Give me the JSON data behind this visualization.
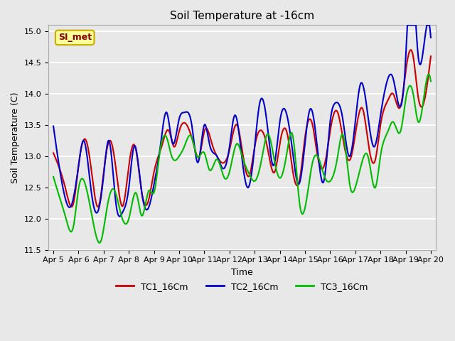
{
  "title": "Soil Temperature at -16cm",
  "xlabel": "Time",
  "ylabel": "Soil Temperature (C)",
  "ylim": [
    11.5,
    15.1
  ],
  "yticks": [
    11.5,
    12.0,
    12.5,
    13.0,
    13.5,
    14.0,
    14.5,
    15.0
  ],
  "bg_color": "#e8e8e8",
  "grid_color": "#ffffff",
  "line_colors": [
    "#cc0000",
    "#0000cc",
    "#00bb00"
  ],
  "legend_labels": [
    "TC1_16Cm",
    "TC2_16Cm",
    "TC3_16Cm"
  ],
  "watermark_text": "SI_met",
  "watermark_bg": "#ffff99",
  "watermark_border": "#ccaa00",
  "watermark_text_color": "#880000",
  "x_tick_labels": [
    "Apr 5",
    "Apr 6",
    "Apr 7",
    "Apr 8",
    "Apr 9",
    "Apr 10",
    "Apr 11",
    "Apr 12",
    "Apr 13",
    "Apr 14",
    "Apr 15",
    "Apr 16",
    "Apr 17",
    "Apr 18",
    "Apr 19",
    "Apr 20"
  ],
  "tc1_x": [
    0,
    0.2,
    0.5,
    0.8,
    1.0,
    1.3,
    1.5,
    1.8,
    2.0,
    2.25,
    2.5,
    2.75,
    3.0,
    3.25,
    3.5,
    3.75,
    4.0,
    4.3,
    4.6,
    4.8,
    5.0,
    5.3,
    5.6,
    5.8,
    6.0,
    6.3,
    6.5,
    6.8,
    7.0,
    7.3,
    7.5,
    7.8,
    8.0,
    8.3,
    8.5,
    8.8,
    9.0,
    9.3,
    9.5,
    9.8,
    10.0,
    10.3,
    10.5,
    10.8,
    11.0,
    11.3,
    11.5,
    11.8,
    12.0,
    12.3,
    12.5,
    12.8,
    13.0,
    13.3,
    13.5,
    13.8,
    14.0,
    14.3,
    14.5,
    14.8,
    15.0
  ],
  "tc1_y": [
    13.05,
    12.85,
    12.45,
    12.25,
    12.85,
    13.25,
    12.8,
    12.2,
    12.75,
    13.25,
    12.75,
    12.2,
    12.85,
    13.15,
    12.45,
    12.25,
    12.75,
    13.15,
    13.4,
    13.15,
    13.4,
    13.5,
    13.15,
    13.0,
    13.4,
    13.2,
    13.0,
    12.9,
    13.1,
    13.5,
    13.1,
    12.7,
    13.15,
    13.4,
    13.15,
    12.75,
    13.2,
    13.35,
    12.8,
    12.65,
    13.3,
    13.5,
    13.0,
    12.9,
    13.4,
    13.7,
    13.3,
    12.95,
    13.35,
    13.75,
    13.25,
    12.95,
    13.5,
    13.9,
    14.0,
    13.8,
    14.35,
    14.6,
    13.95,
    14.0,
    14.6
  ],
  "tc2_x": [
    0,
    0.15,
    0.4,
    0.7,
    1.0,
    1.2,
    1.5,
    1.75,
    2.0,
    2.2,
    2.5,
    2.75,
    3.0,
    3.2,
    3.5,
    3.75,
    4.0,
    4.25,
    4.5,
    4.75,
    5.0,
    5.2,
    5.5,
    5.75,
    6.0,
    6.2,
    6.5,
    6.75,
    7.0,
    7.2,
    7.5,
    7.75,
    8.0,
    8.2,
    8.5,
    8.75,
    9.0,
    9.2,
    9.5,
    9.75,
    10.0,
    10.2,
    10.5,
    10.75,
    11.0,
    11.2,
    11.5,
    11.75,
    12.0,
    12.2,
    12.5,
    12.75,
    13.0,
    13.2,
    13.5,
    13.75,
    14.0,
    14.2,
    14.5,
    14.75,
    15.0
  ],
  "tc2_y": [
    13.48,
    13.05,
    12.45,
    12.2,
    12.85,
    13.25,
    12.45,
    12.1,
    12.7,
    13.25,
    12.2,
    12.1,
    12.5,
    13.15,
    12.45,
    12.15,
    12.55,
    13.15,
    13.7,
    13.2,
    13.6,
    13.7,
    13.5,
    12.9,
    13.5,
    13.2,
    13.0,
    12.8,
    13.15,
    13.65,
    12.95,
    12.5,
    13.15,
    13.85,
    13.5,
    12.85,
    13.55,
    13.75,
    13.1,
    12.55,
    13.2,
    13.75,
    13.1,
    12.6,
    13.55,
    13.85,
    13.6,
    13.0,
    13.55,
    14.15,
    13.65,
    13.15,
    13.65,
    14.1,
    14.25,
    13.8,
    14.55,
    16.0,
    14.6,
    14.85,
    14.9
  ],
  "tc3_x": [
    0,
    0.2,
    0.5,
    0.8,
    1.0,
    1.3,
    1.6,
    1.9,
    2.1,
    2.4,
    2.7,
    3.0,
    3.3,
    3.5,
    3.8,
    4.0,
    4.2,
    4.5,
    4.7,
    5.0,
    5.2,
    5.5,
    5.7,
    6.0,
    6.2,
    6.5,
    6.8,
    7.0,
    7.3,
    7.5,
    7.8,
    8.0,
    8.3,
    8.5,
    8.8,
    9.0,
    9.3,
    9.5,
    9.8,
    10.0,
    10.3,
    10.5,
    10.8,
    11.0,
    11.3,
    11.5,
    11.8,
    12.0,
    12.3,
    12.5,
    12.8,
    13.0,
    13.3,
    13.5,
    13.8,
    14.0,
    14.3,
    14.5,
    14.8,
    15.0
  ],
  "tc3_y": [
    12.67,
    12.4,
    12.0,
    11.88,
    12.48,
    12.5,
    11.9,
    11.65,
    12.1,
    12.47,
    12.05,
    12.0,
    12.4,
    12.05,
    12.45,
    12.42,
    12.98,
    13.3,
    13.0,
    13.0,
    13.15,
    13.3,
    13.0,
    13.05,
    12.78,
    12.95,
    12.65,
    12.75,
    13.2,
    13.0,
    12.7,
    12.6,
    13.0,
    13.35,
    12.9,
    12.65,
    13.1,
    13.35,
    12.2,
    12.17,
    12.9,
    13.0,
    12.65,
    12.6,
    13.0,
    13.35,
    12.5,
    12.5,
    12.95,
    13.0,
    12.5,
    13.0,
    13.4,
    13.55,
    13.4,
    13.9,
    14.0,
    13.55,
    14.15,
    14.2
  ]
}
